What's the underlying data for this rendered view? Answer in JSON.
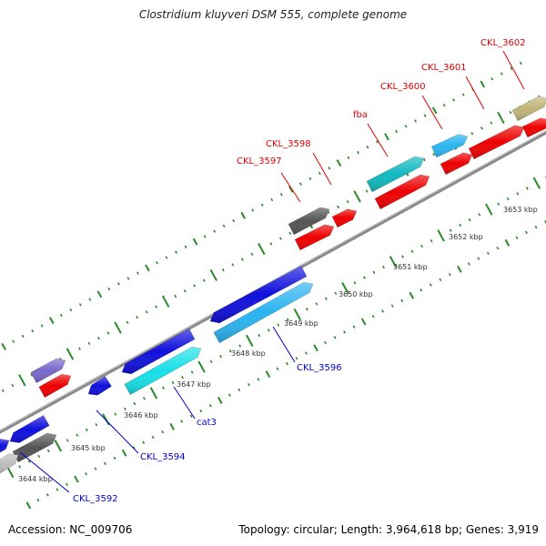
{
  "title": "Clostridium kluyveri DSM 555, complete genome",
  "footer": {
    "accession": "Accession: NC_009706",
    "info": "Topology: circular; Length: 3,964,618 bp; Genes: 3,919"
  },
  "scale_labels": [
    "3644 kbp",
    "3645 kbp",
    "3646 kbp",
    "3647 kbp",
    "3648 kbp",
    "3649 kbp",
    "3650 kbp",
    "3651 kbp",
    "3652 kbp",
    "3653 kbp"
  ],
  "genes_top": [
    "CKL_3597",
    "CKL_3598",
    "fba",
    "CKL_3600",
    "CKL_3601",
    "CKL_3602"
  ],
  "genes_bottom": [
    "CKL_3592",
    "CKL_3594",
    "cat3",
    "CKL_3596"
  ],
  "colors": {
    "backbone": "#7a7a7a",
    "tick": "#2a8a2a",
    "forward_label": "#dd0000",
    "reverse_label": "#0000cc",
    "red": "#ee0000",
    "blue": "#1010dd",
    "cyan": "#18e0e8",
    "skyblue": "#2ab4f0",
    "teal": "#10b8c0",
    "gray": "#555555",
    "lightgray": "#bdbdbd",
    "purple": "#7766cc",
    "olive": "#c0b478"
  }
}
